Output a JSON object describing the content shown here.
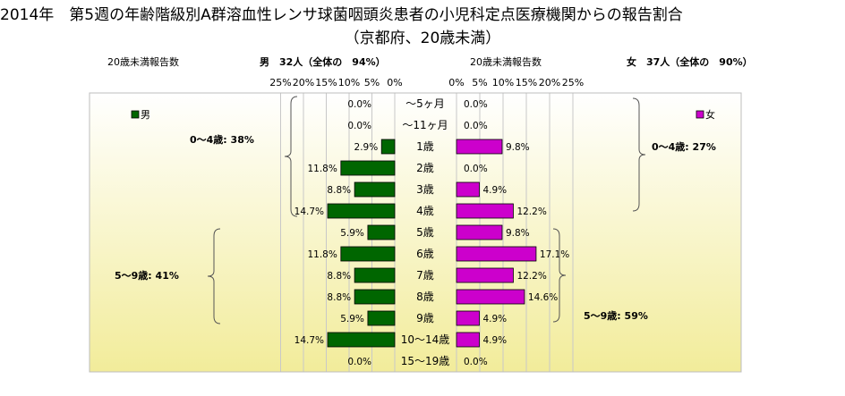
{
  "title": "2014年　第5週の年齢階級別A群溶血性レンサ球菌咽頭炎患者の小児科定点医療機関からの報告割合",
  "subtitle": "（京都府、20歳未満）",
  "colors": {
    "male": "#006600",
    "female": "#cc00cc",
    "bg_top": "#ffffff",
    "bg_bottom": "#f2ec9a"
  },
  "chart_data": {
    "type": "bar",
    "orientation": "horizontal-population-pyramid",
    "categories": [
      "～5ヶ月",
      "～11ヶ月",
      "1歳",
      "2歳",
      "3歳",
      "4歳",
      "5歳",
      "6歳",
      "7歳",
      "8歳",
      "9歳",
      "10～14歳",
      "15～19歳"
    ],
    "axis_ticks": [
      "0%",
      "5%",
      "10%",
      "15%",
      "20%",
      "25%"
    ],
    "xlim": [
      0,
      25
    ],
    "grid": true,
    "series": [
      {
        "name": "男",
        "header_label": "20歳未満報告数",
        "header_title": "男　32人（全体の　94%）",
        "values": [
          0.0,
          0.0,
          2.9,
          11.8,
          8.8,
          14.7,
          5.9,
          11.8,
          8.8,
          8.8,
          5.9,
          14.7,
          0.0
        ],
        "labels": [
          "0.0%",
          "0.0%",
          "2.9%",
          "11.8%",
          "8.8%",
          "14.7%",
          "5.9%",
          "11.8%",
          "8.8%",
          "8.8%",
          "5.9%",
          "14.7%",
          "0.0%"
        ],
        "annotations": [
          "0～4歳: 38%",
          "5～9歳: 41%"
        ]
      },
      {
        "name": "女",
        "header_label": "20歳未満報告数",
        "header_title": "女　37人（全体の　90%）",
        "values": [
          0.0,
          0.0,
          9.8,
          0.0,
          4.9,
          12.2,
          9.8,
          17.1,
          12.2,
          14.6,
          4.9,
          4.9,
          0.0
        ],
        "labels": [
          "0.0%",
          "0.0%",
          "9.8%",
          "0.0%",
          "4.9%",
          "12.2%",
          "9.8%",
          "17.1%",
          "12.2%",
          "14.6%",
          "4.9%",
          "4.9%",
          "0.0%"
        ],
        "annotations": [
          "0～4歳: 27%",
          "5～9歳: 59%"
        ]
      }
    ]
  }
}
